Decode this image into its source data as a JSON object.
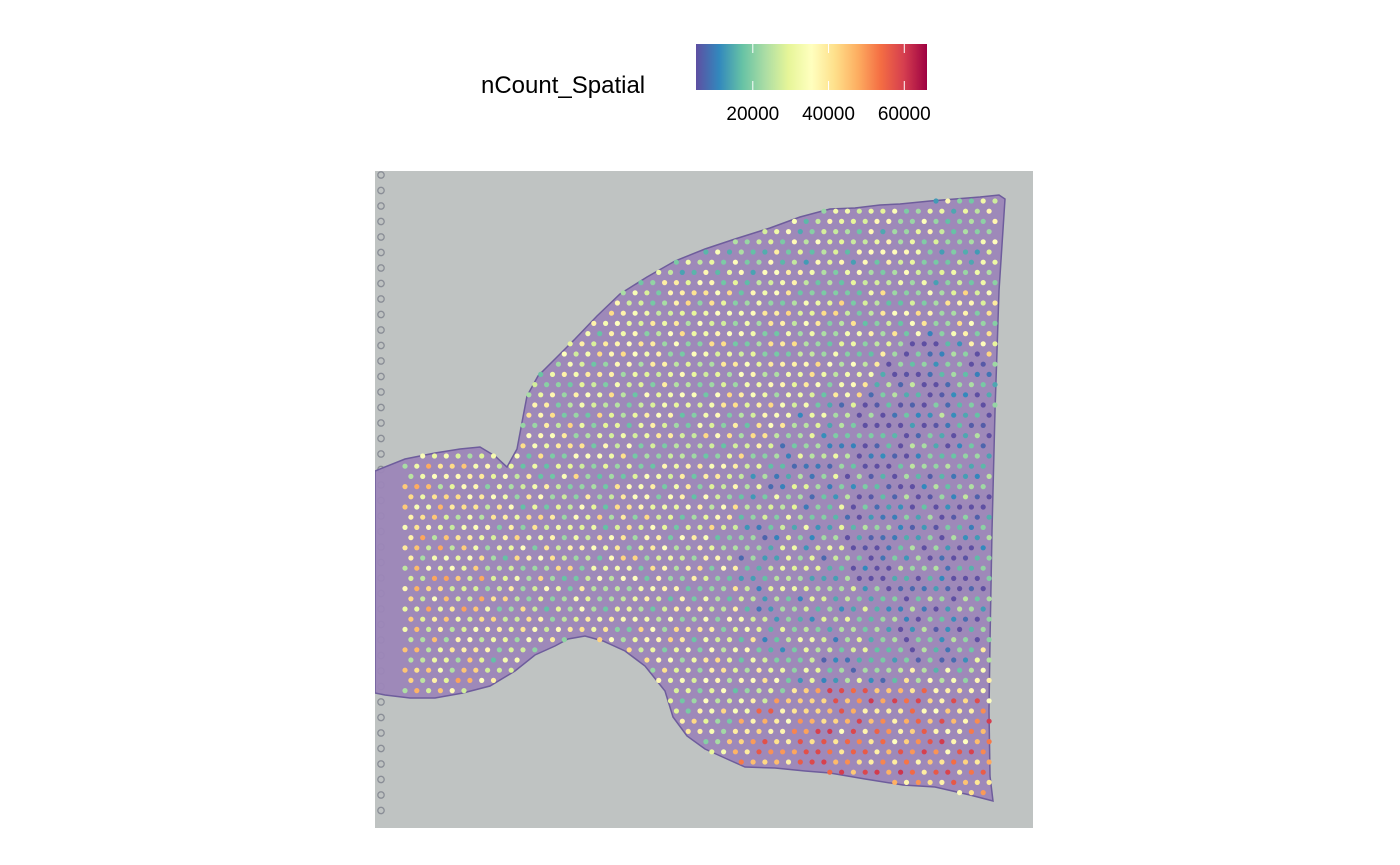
{
  "legend": {
    "title": "nCount_Spatial",
    "ticks": [
      {
        "value": 20000,
        "label": "20000"
      },
      {
        "value": 40000,
        "label": "40000"
      },
      {
        "value": 60000,
        "label": "60000"
      }
    ],
    "range": [
      5000,
      66000
    ],
    "colormap": "Spectral (reversed)",
    "colors": [
      "#5e4fa2",
      "#3288bd",
      "#66c2a5",
      "#abdda4",
      "#e6f598",
      "#ffffbf",
      "#fee08b",
      "#fdae61",
      "#f46d43",
      "#d53e4f",
      "#9e0142"
    ]
  },
  "background": {
    "slide_color": "#bfc3c2",
    "tissue_color": "#9c86b8",
    "tissue_dark_color": "#6e5d9c"
  },
  "chart_data": {
    "type": "scatter",
    "title": "",
    "variable": "nCount_Spatial",
    "description_of_values": "spots on tissue colored by nCount_Spatial; lower-right region and left area highest (~40000-66000), right-middle region lowest (~5000-15000)",
    "value_range": [
      5000,
      66000
    ],
    "regions": [
      {
        "region": "left bulb",
        "typical_value": 40000
      },
      {
        "region": "center",
        "typical_value": 32000
      },
      {
        "region": "right-middle",
        "typical_value": 12000
      },
      {
        "region": "bottom-right",
        "typical_value": 50000
      },
      {
        "region": "top",
        "typical_value": 25000
      }
    ]
  }
}
